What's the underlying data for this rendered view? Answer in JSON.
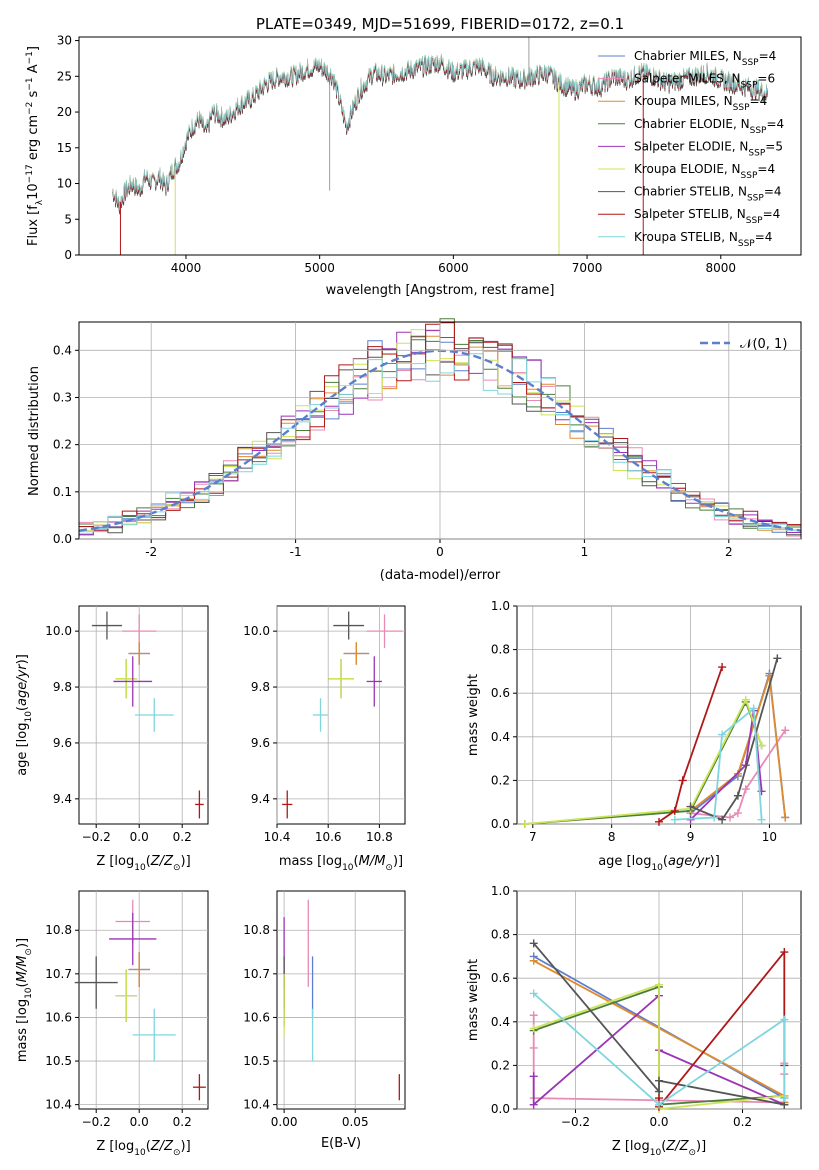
{
  "chart_data": [
    {
      "id": "spectrum",
      "type": "line",
      "title": "PLATE=0349, MJD=51699, FIBERID=0172, z=0.1",
      "xlabel": "wavelength [Angstrom, rest frame]",
      "ylabel": "Flux [f_λ 10^-17 erg cm^-2 s^-1 A^-1]",
      "xlim": [
        3200,
        8600
      ],
      "ylim": [
        0,
        30.5
      ],
      "xticks": [
        4000,
        5000,
        6000,
        7000,
        8000
      ],
      "yticks": [
        0,
        5,
        10,
        15,
        20,
        25,
        30
      ],
      "grid": false,
      "legend_position": "right",
      "spectrum_samples": {
        "x": [
          3450,
          3500,
          3550,
          3600,
          3650,
          3700,
          3750,
          3800,
          3850,
          3900,
          3950,
          4000,
          4050,
          4100,
          4150,
          4200,
          4300,
          4400,
          4500,
          4600,
          4700,
          4800,
          4900,
          5000,
          5100,
          5200,
          5300,
          5400,
          5500,
          5600,
          5700,
          5800,
          5900,
          6000,
          6100,
          6200,
          6300,
          6400,
          6500,
          6600,
          6700,
          6800,
          6900,
          7000,
          7100,
          7200,
          7300,
          7400,
          7500,
          7600,
          7700,
          7800,
          7900,
          8000,
          8100,
          8200,
          8300,
          8350
        ],
        "y": [
          9,
          7,
          9,
          10,
          9,
          11,
          10,
          11,
          9.5,
          12,
          13,
          16,
          18,
          19,
          17,
          20,
          19,
          21,
          22,
          24,
          25,
          25,
          26,
          26.5,
          25,
          18,
          23,
          25.5,
          25,
          25.5,
          26,
          26.5,
          27,
          25.5,
          26,
          26.5,
          25,
          25,
          24.5,
          25,
          25.5,
          24,
          23,
          24,
          23.5,
          25,
          24.5,
          25.5,
          25,
          24,
          24.5,
          25,
          25.5,
          24.5,
          24,
          23.5,
          23,
          22.5
        ]
      },
      "series": [
        {
          "name": "Chabrier MILES, N_SSP=4",
          "legend_main": "Chabrier MILES, N",
          "legend_sub": "SSP",
          "legend_tail": "=4",
          "color": "#5b7fcf"
        },
        {
          "name": "Salpeter MILES, N_SSP=6",
          "legend_main": "Salpeter MILES, N",
          "legend_sub": "SSP",
          "legend_tail": "=6",
          "color": "#e88ab6"
        },
        {
          "name": "Kroupa MILES, N_SSP=4",
          "legend_main": "Kroupa MILES, N",
          "legend_sub": "SSP",
          "legend_tail": "=4",
          "color": "#e08a2e"
        },
        {
          "name": "Chabrier ELODIE, N_SSP=4",
          "legend_main": "Chabrier ELODIE, N",
          "legend_sub": "SSP",
          "legend_tail": "=4",
          "color": "#4a7f3a"
        },
        {
          "name": "Salpeter ELODIE, N_SSP=5",
          "legend_main": "Salpeter ELODIE, N",
          "legend_sub": "SSP",
          "legend_tail": "=5",
          "color": "#9b35b5"
        },
        {
          "name": "Kroupa ELODIE, N_SSP=4",
          "legend_main": "Kroupa ELODIE, N",
          "legend_sub": "SSP",
          "legend_tail": "=4",
          "color": "#cde35a"
        },
        {
          "name": "Chabrier STELIB, N_SSP=4",
          "legend_main": "Chabrier STELIB, N",
          "legend_sub": "SSP",
          "legend_tail": "=4",
          "color": "#555555"
        },
        {
          "name": "Salpeter STELIB, N_SSP=4",
          "legend_main": "Salpeter STELIB, N",
          "legend_sub": "SSP",
          "legend_tail": "=4",
          "color": "#b01818"
        },
        {
          "name": "Kroupa STELIB, N_SSP=4",
          "legend_main": "Kroupa STELIB, N",
          "legend_sub": "SSP",
          "legend_tail": "=4",
          "color": "#7fd6de"
        }
      ]
    },
    {
      "id": "residuals",
      "type": "line",
      "xlabel": "(data-model)/error",
      "ylabel": "Normed distribution",
      "xlim": [
        -2.5,
        2.5
      ],
      "ylim": [
        0,
        0.46
      ],
      "xticks": [
        -2,
        -1,
        0,
        1,
        2
      ],
      "yticks": [
        0.0,
        0.1,
        0.2,
        0.3,
        0.4
      ],
      "grid": true,
      "legend_position": "top-right",
      "legend_label": "𝒩(0, 1)",
      "bin_width": 0.1,
      "bin_start": -2.5,
      "normal_curve": {
        "mean": 0,
        "sigma": 1,
        "color": "#5b7fcf"
      }
    },
    {
      "id": "age_vs_Z",
      "type": "scatter",
      "xlabel": "Z [log10(Z/Z⊙)]",
      "ylabel": "age  [log10(age/yr)]",
      "xlim": [
        -0.28,
        0.32
      ],
      "ylim": [
        9.31,
        10.09
      ],
      "xticks": [
        -0.2,
        0.0,
        0.2
      ],
      "xtick_labels": [
        "−0.2",
        "0.0",
        "0.2"
      ],
      "yticks": [
        9.4,
        9.6,
        9.8,
        10.0
      ],
      "yticks_labels": [
        "9.4",
        "9.6",
        "9.8",
        "10.0"
      ],
      "grid": true,
      "points": [
        {
          "x": 0.0,
          "y": 10.0,
          "xerr": 0.08,
          "yerr": 0.06,
          "color": "#e88ab6"
        },
        {
          "x": -0.15,
          "y": 10.02,
          "xerr": 0.07,
          "yerr": 0.05,
          "color": "#555555"
        },
        {
          "x": 0.0,
          "y": 9.92,
          "xerr": 0.05,
          "yerr": 0.04,
          "color": "#5b7fcf"
        },
        {
          "x": 0.0,
          "y": 9.92,
          "xerr": 0.05,
          "yerr": 0.04,
          "color": "#e08a2e"
        },
        {
          "x": -0.06,
          "y": 9.83,
          "xerr": 0.05,
          "yerr": 0.07,
          "color": "#4a7f3a"
        },
        {
          "x": -0.06,
          "y": 9.83,
          "xerr": 0.05,
          "yerr": 0.07,
          "color": "#cde35a"
        },
        {
          "x": -0.03,
          "y": 9.82,
          "xerr": 0.09,
          "yerr": 0.09,
          "color": "#9b35b5"
        },
        {
          "x": 0.07,
          "y": 9.7,
          "xerr": 0.09,
          "yerr": 0.06,
          "color": "#7fd6de"
        },
        {
          "x": 0.28,
          "y": 9.38,
          "xerr": 0.02,
          "yerr": 0.05,
          "color": "#b01818"
        }
      ]
    },
    {
      "id": "age_vs_mass",
      "type": "scatter",
      "xlabel": "mass [log10(M/M⊙)]",
      "ylabel": "",
      "xlim": [
        10.4,
        10.9
      ],
      "ylim": [
        9.31,
        10.09
      ],
      "xticks": [
        10.4,
        10.6,
        10.8
      ],
      "xtick_labels": [
        "10.4",
        "10.6",
        "10.8"
      ],
      "yticks": [
        9.4,
        9.6,
        9.8,
        10.0
      ],
      "yticks_labels": [
        "9.4",
        "9.6",
        "9.8",
        "10.0"
      ],
      "grid": true,
      "points": [
        {
          "x": 10.82,
          "y": 10.0,
          "xerr": 0.07,
          "yerr": 0.06,
          "color": "#e88ab6"
        },
        {
          "x": 10.68,
          "y": 10.02,
          "xerr": 0.06,
          "yerr": 0.05,
          "color": "#555555"
        },
        {
          "x": 10.71,
          "y": 9.92,
          "xerr": 0.05,
          "yerr": 0.04,
          "color": "#5b7fcf"
        },
        {
          "x": 10.71,
          "y": 9.92,
          "xerr": 0.05,
          "yerr": 0.04,
          "color": "#e08a2e"
        },
        {
          "x": 10.65,
          "y": 9.83,
          "xerr": 0.05,
          "yerr": 0.07,
          "color": "#4a7f3a"
        },
        {
          "x": 10.65,
          "y": 9.83,
          "xerr": 0.05,
          "yerr": 0.07,
          "color": "#cde35a"
        },
        {
          "x": 10.78,
          "y": 9.82,
          "xerr": 0.03,
          "yerr": 0.09,
          "color": "#9b35b5"
        },
        {
          "x": 10.57,
          "y": 9.7,
          "xerr": 0.03,
          "yerr": 0.06,
          "color": "#7fd6de"
        },
        {
          "x": 10.44,
          "y": 9.38,
          "xerr": 0.02,
          "yerr": 0.05,
          "color": "#b01818"
        }
      ]
    },
    {
      "id": "weight_vs_age",
      "type": "line",
      "xlabel": "age  [log10(age/yr)]",
      "ylabel": "mass weight",
      "xlim": [
        6.8,
        10.4
      ],
      "ylim": [
        0,
        1.0
      ],
      "xticks": [
        7,
        8,
        9,
        10
      ],
      "yticks": [
        0.0,
        0.2,
        0.4,
        0.6,
        0.8,
        1.0
      ],
      "grid": true,
      "series": [
        {
          "color": "#5b7fcf",
          "x": [
            9.0,
            9.6,
            10.0,
            10.2
          ],
          "y": [
            0.05,
            0.22,
            0.69,
            0.03
          ]
        },
        {
          "color": "#e88ab6",
          "x": [
            9.0,
            9.5,
            9.6,
            9.7,
            10.2
          ],
          "y": [
            0.05,
            0.03,
            0.05,
            0.16,
            0.43
          ]
        },
        {
          "color": "#e08a2e",
          "x": [
            9.0,
            9.6,
            10.0,
            10.2
          ],
          "y": [
            0.06,
            0.23,
            0.68,
            0.03
          ]
        },
        {
          "color": "#4a7f3a",
          "x": [
            6.9,
            9.0,
            9.7,
            9.9
          ],
          "y": [
            0.0,
            0.06,
            0.56,
            0.36
          ]
        },
        {
          "color": "#9b35b5",
          "x": [
            9.0,
            9.7,
            9.8,
            9.9
          ],
          "y": [
            0.02,
            0.27,
            0.52,
            0.15
          ]
        },
        {
          "color": "#cde35a",
          "x": [
            6.9,
            9.0,
            9.7,
            9.9
          ],
          "y": [
            0.0,
            0.07,
            0.57,
            0.36
          ]
        },
        {
          "color": "#555555",
          "x": [
            9.0,
            9.4,
            9.6,
            10.1
          ],
          "y": [
            0.08,
            0.02,
            0.13,
            0.76
          ]
        },
        {
          "color": "#b01818",
          "x": [
            8.6,
            8.8,
            8.9,
            9.4
          ],
          "y": [
            0.01,
            0.06,
            0.2,
            0.72
          ]
        },
        {
          "color": "#7fd6de",
          "x": [
            8.8,
            9.3,
            9.4,
            9.8,
            9.9
          ],
          "y": [
            0.02,
            0.03,
            0.41,
            0.53,
            0.02
          ]
        }
      ]
    },
    {
      "id": "mass_vs_Z",
      "type": "scatter",
      "xlabel": "Z [log10(Z/Z⊙)]",
      "ylabel": "mass [log10(M/M⊙)]",
      "xlim": [
        -0.28,
        0.32
      ],
      "ylim": [
        10.39,
        10.89
      ],
      "xticks": [
        -0.2,
        0.0,
        0.2
      ],
      "xtick_labels": [
        "−0.2",
        "0.0",
        "0.2"
      ],
      "yticks": [
        10.4,
        10.5,
        10.6,
        10.7,
        10.8
      ],
      "yticks_labels": [
        "10.4",
        "10.5",
        "10.6",
        "10.7",
        "10.8"
      ],
      "grid": true,
      "points": [
        {
          "x": -0.03,
          "y": 10.82,
          "xerr": 0.08,
          "yerr": 0.05,
          "color": "#e88ab6"
        },
        {
          "x": -0.03,
          "y": 10.78,
          "xerr": 0.11,
          "yerr": 0.06,
          "color": "#9b35b5"
        },
        {
          "x": -0.2,
          "y": 10.68,
          "xerr": 0.1,
          "yerr": 0.06,
          "color": "#555555"
        },
        {
          "x": 0.0,
          "y": 10.71,
          "xerr": 0.05,
          "yerr": 0.04,
          "color": "#5b7fcf"
        },
        {
          "x": 0.0,
          "y": 10.71,
          "xerr": 0.05,
          "yerr": 0.04,
          "color": "#e08a2e"
        },
        {
          "x": -0.06,
          "y": 10.65,
          "xerr": 0.05,
          "yerr": 0.06,
          "color": "#4a7f3a"
        },
        {
          "x": -0.06,
          "y": 10.65,
          "xerr": 0.05,
          "yerr": 0.06,
          "color": "#cde35a"
        },
        {
          "x": 0.07,
          "y": 10.56,
          "xerr": 0.1,
          "yerr": 0.06,
          "color": "#7fd6de"
        },
        {
          "x": 0.28,
          "y": 10.44,
          "xerr": 0.03,
          "yerr": 0.03,
          "color": "#b01818"
        }
      ]
    },
    {
      "id": "mass_vs_ebv",
      "type": "scatter",
      "xlabel": "E(B-V)",
      "ylabel": "",
      "xlim": [
        -0.005,
        0.085
      ],
      "ylim": [
        10.39,
        10.89
      ],
      "xticks": [
        0.0,
        0.05
      ],
      "xtick_labels": [
        "0.00",
        "0.05"
      ],
      "yticks": [
        10.4,
        10.5,
        10.6,
        10.7,
        10.8
      ],
      "yticks_labels": [
        "10.4",
        "10.5",
        "10.6",
        "10.7",
        "10.8"
      ],
      "grid": true,
      "points": [
        {
          "x": 0.0,
          "y": 10.75,
          "xerr": 0.0,
          "yerr": 0.08,
          "color": "#9b35b5"
        },
        {
          "x": 0.0,
          "y": 10.68,
          "xerr": 0.0,
          "yerr": 0.06,
          "color": "#555555"
        },
        {
          "x": 0.0,
          "y": 10.64,
          "xerr": 0.0,
          "yerr": 0.06,
          "color": "#4a7f3a"
        },
        {
          "x": 0.0,
          "y": 10.63,
          "xerr": 0.0,
          "yerr": 0.07,
          "color": "#cde35a"
        },
        {
          "x": 0.017,
          "y": 10.77,
          "xerr": 0.0,
          "yerr": 0.1,
          "color": "#e88ab6"
        },
        {
          "x": 0.02,
          "y": 10.67,
          "xerr": 0.0,
          "yerr": 0.07,
          "color": "#5b7fcf"
        },
        {
          "x": 0.02,
          "y": 10.56,
          "xerr": 0.0,
          "yerr": 0.06,
          "color": "#7fd6de"
        },
        {
          "x": 0.081,
          "y": 10.44,
          "xerr": 0.0,
          "yerr": 0.03,
          "color": "#b01818"
        }
      ]
    },
    {
      "id": "weight_vs_Z",
      "type": "line",
      "xlabel": "Z [log10(Z/Z⊙)]",
      "ylabel": "mass weight",
      "xlim": [
        -0.34,
        0.34
      ],
      "ylim": [
        0,
        1.0
      ],
      "xticks": [
        -0.2,
        0.0,
        0.2
      ],
      "xtick_labels": [
        "−0.2",
        "0.0",
        "0.2"
      ],
      "yticks": [
        0.0,
        0.2,
        0.4,
        0.6,
        0.8,
        1.0
      ],
      "yticks_labels": [
        "0.0",
        "0.2",
        "0.4",
        "0.6",
        "0.8",
        "1.0"
      ],
      "grid": true,
      "series": [
        {
          "color": "#5b7fcf",
          "x": [
            -0.3,
            0.3,
            0.3
          ],
          "y": [
            0.7,
            0.05,
            0.03
          ]
        },
        {
          "color": "#e88ab6",
          "x": [
            -0.3,
            -0.3,
            -0.3,
            0.3,
            0.3,
            0.3
          ],
          "y": [
            0.43,
            0.28,
            0.05,
            0.03,
            0.16,
            0.21
          ]
        },
        {
          "color": "#e08a2e",
          "x": [
            -0.3,
            0.3,
            0.3
          ],
          "y": [
            0.68,
            0.06,
            0.03
          ]
        },
        {
          "color": "#4a7f3a",
          "x": [
            -0.3,
            0.0,
            0.0,
            0.3
          ],
          "y": [
            0.36,
            0.56,
            0.02,
            0.06
          ]
        },
        {
          "color": "#9b35b5",
          "x": [
            -0.3,
            -0.3,
            0.0,
            0.0,
            0.3
          ],
          "y": [
            0.15,
            0.02,
            0.52,
            0.27,
            0.02
          ]
        },
        {
          "color": "#cde35a",
          "x": [
            -0.3,
            0.0,
            0.0,
            0.3
          ],
          "y": [
            0.37,
            0.57,
            0.0,
            0.06
          ]
        },
        {
          "color": "#555555",
          "x": [
            -0.3,
            0.0,
            0.0,
            0.3
          ],
          "y": [
            0.76,
            0.08,
            0.13,
            0.02
          ]
        },
        {
          "color": "#b01818",
          "x": [
            0.0,
            0.0,
            0.3,
            0.3
          ],
          "y": [
            0.05,
            0.01,
            0.72,
            0.2
          ]
        },
        {
          "color": "#7fd6de",
          "x": [
            -0.3,
            0.0,
            0.3,
            0.3
          ],
          "y": [
            0.53,
            0.02,
            0.41,
            0.05
          ]
        }
      ]
    }
  ]
}
